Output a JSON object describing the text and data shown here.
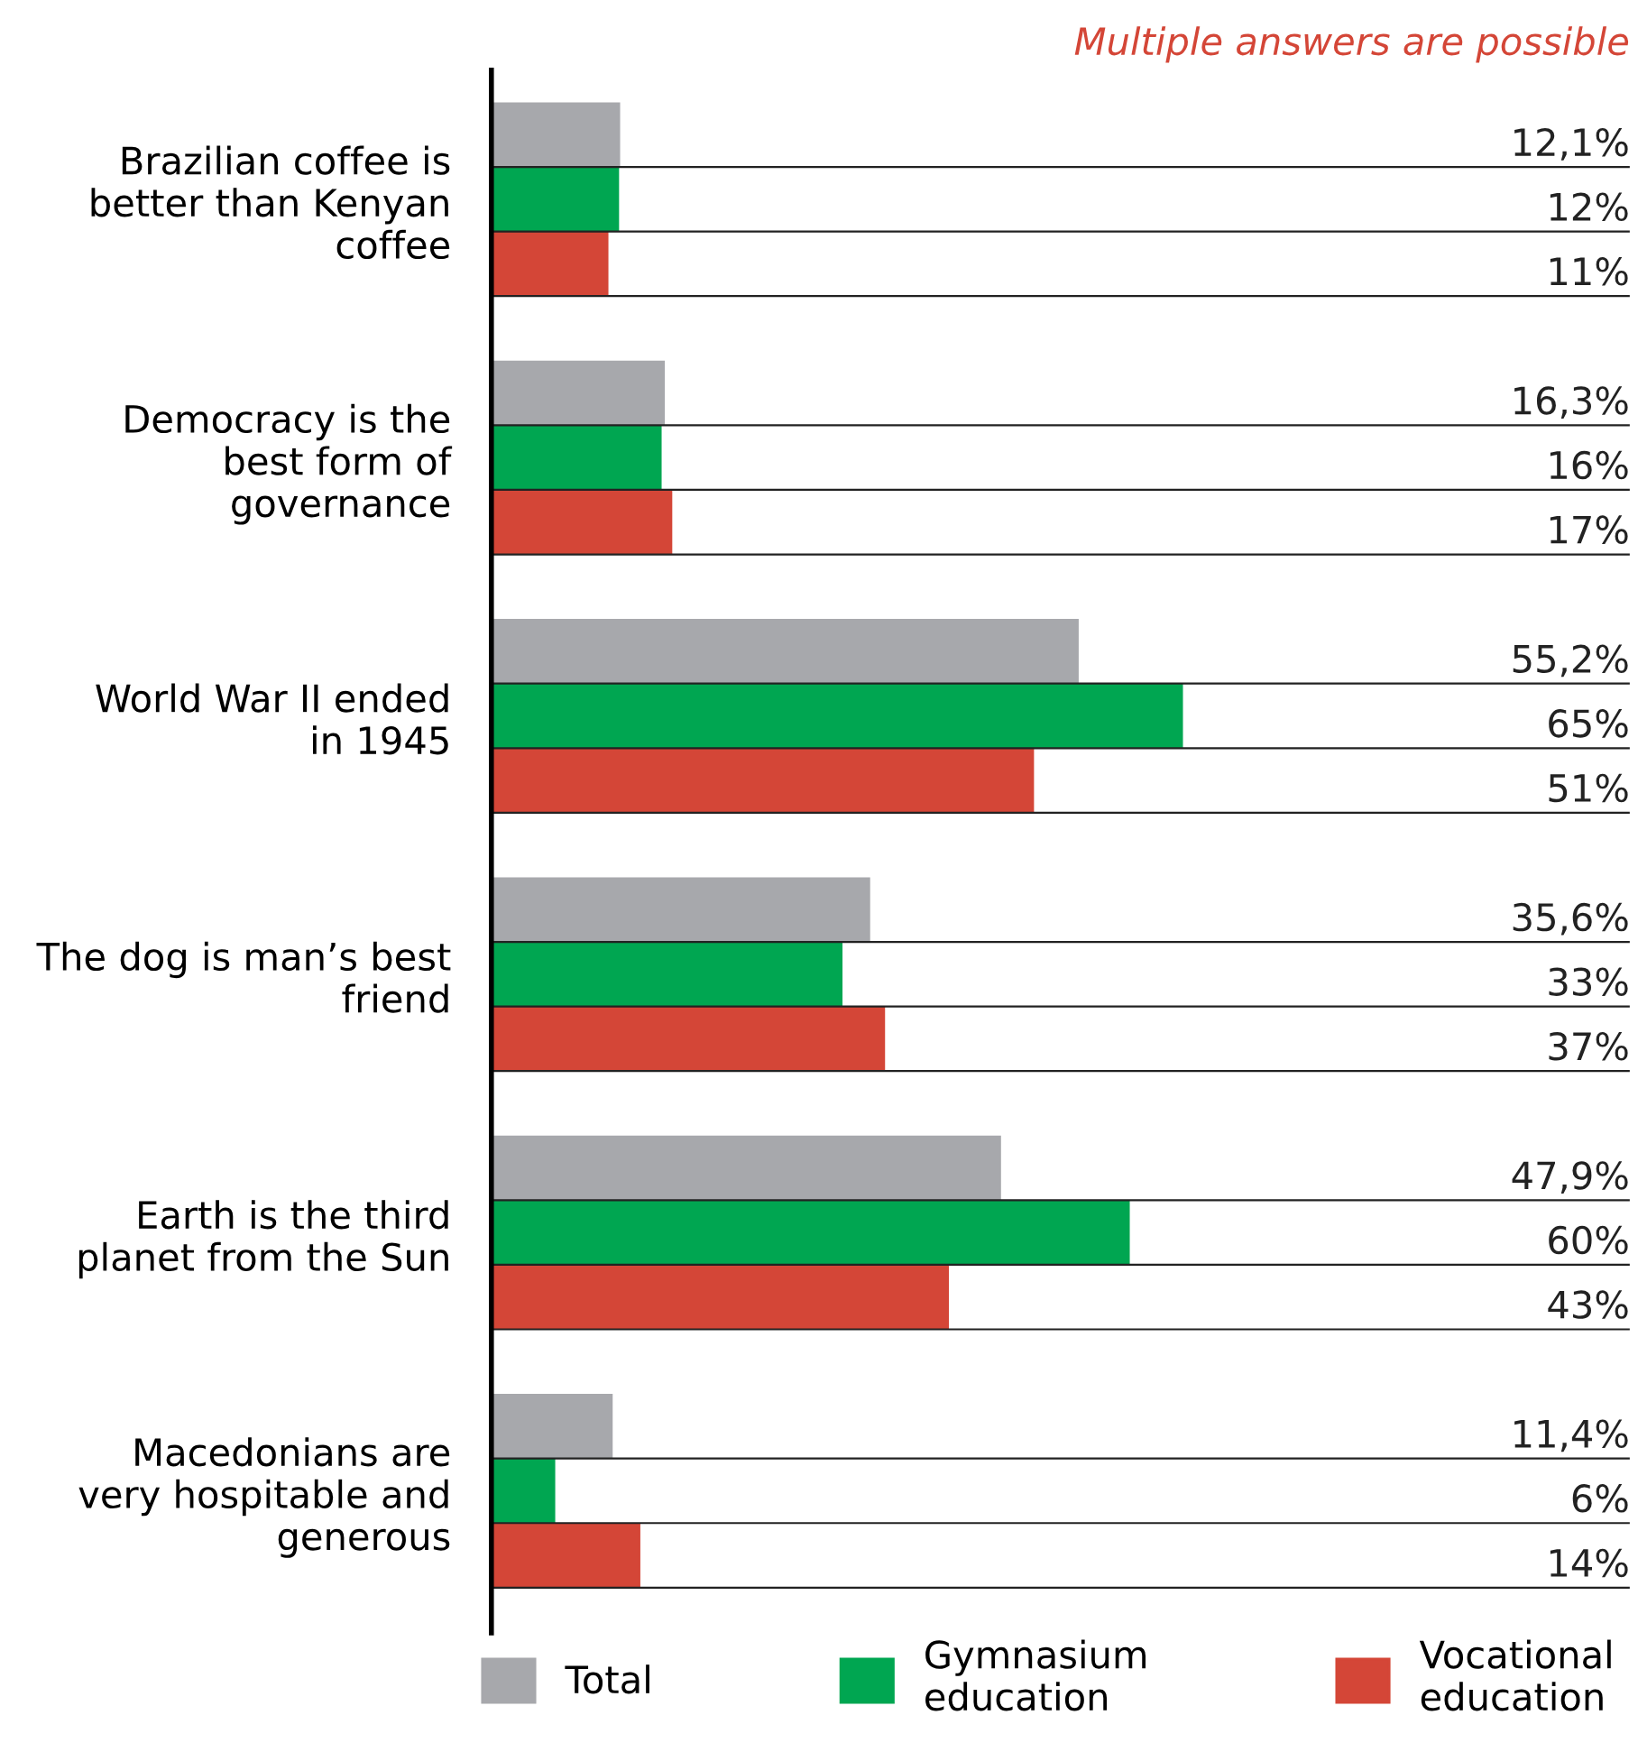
{
  "chart_data": {
    "type": "bar",
    "orientation": "horizontal",
    "categories": [
      "Brazilian coffee is\nbetter than Kenyan\ncoffee",
      "Democracy is the\nbest form of\ngovernance",
      "World War II ended\nin 1945",
      "The dog is man’s best\nfriend",
      "Earth is the third\nplanet from the Sun",
      "Macedonians are\nvery hospitable and\ngenerous"
    ],
    "series": [
      {
        "name": "Total",
        "color": "#a7a8ac",
        "values": [
          12.1,
          16.3,
          55.2,
          35.6,
          47.9,
          11.4
        ],
        "value_labels": [
          "12,1%",
          "16,3%",
          "55,2%",
          "35,6%",
          "47,9%",
          "11,4%"
        ]
      },
      {
        "name": "Gymnasium\neducation",
        "color": "#00a651",
        "values": [
          12,
          16,
          65,
          33,
          60,
          6
        ],
        "value_labels": [
          "12%",
          "16%",
          "65%",
          "33%",
          "60%",
          "6%"
        ]
      },
      {
        "name": "Vocational\neducation",
        "color": "#d44637",
        "values": [
          11,
          17,
          51,
          37,
          43,
          14
        ],
        "value_labels": [
          "11%",
          "17%",
          "51%",
          "37%",
          "43%",
          "14%"
        ]
      }
    ],
    "xlim": [
      0,
      107
    ],
    "tick_labels": "y",
    "grid": false,
    "legend": "bottom",
    "annotations": [
      "Multiple answers are possible"
    ]
  }
}
